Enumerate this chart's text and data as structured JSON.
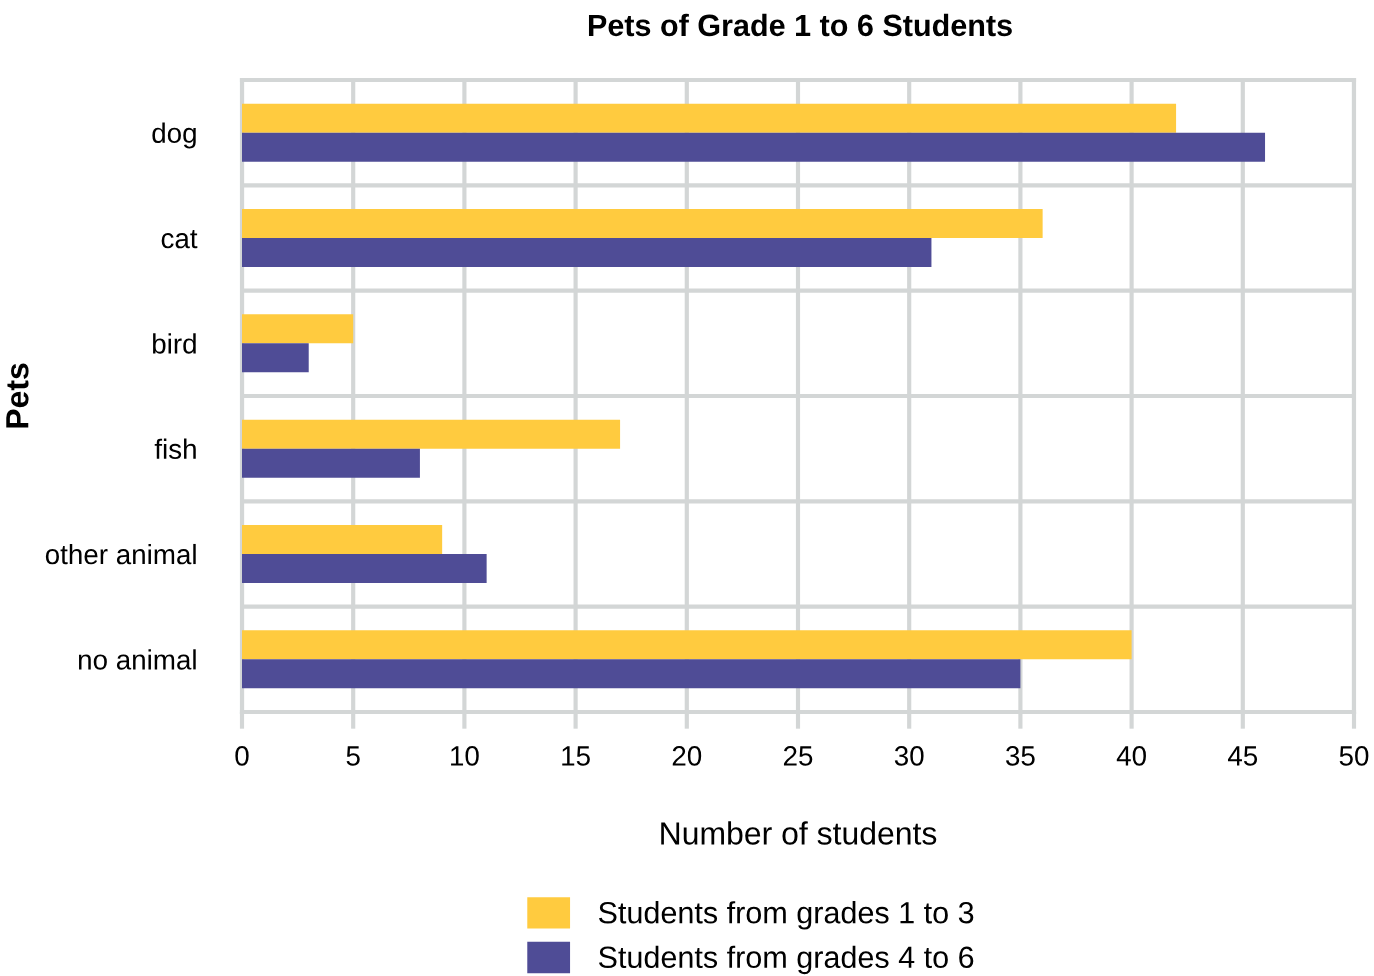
{
  "chart_data": {
    "type": "bar",
    "orientation": "horizontal",
    "title": "Pets of Grade 1 to 6 Students",
    "xlabel": "Number of students",
    "ylabel": "Pets",
    "categories": [
      "dog",
      "cat",
      "bird",
      "fish",
      "other animal",
      "no animal"
    ],
    "series": [
      {
        "name": "Students from grades 1 to 3",
        "color": "#ffcb3f",
        "values": [
          42,
          36,
          5,
          17,
          9,
          40
        ]
      },
      {
        "name": "Students from grades 4 to 6",
        "color": "#4f4c96",
        "values": [
          46,
          31,
          3,
          8,
          11,
          35
        ]
      }
    ],
    "xlim": [
      0,
      50
    ],
    "xticks": [
      0,
      5,
      10,
      15,
      20,
      25,
      30,
      35,
      40,
      45,
      50
    ],
    "grid": true,
    "legend": "bottom"
  }
}
